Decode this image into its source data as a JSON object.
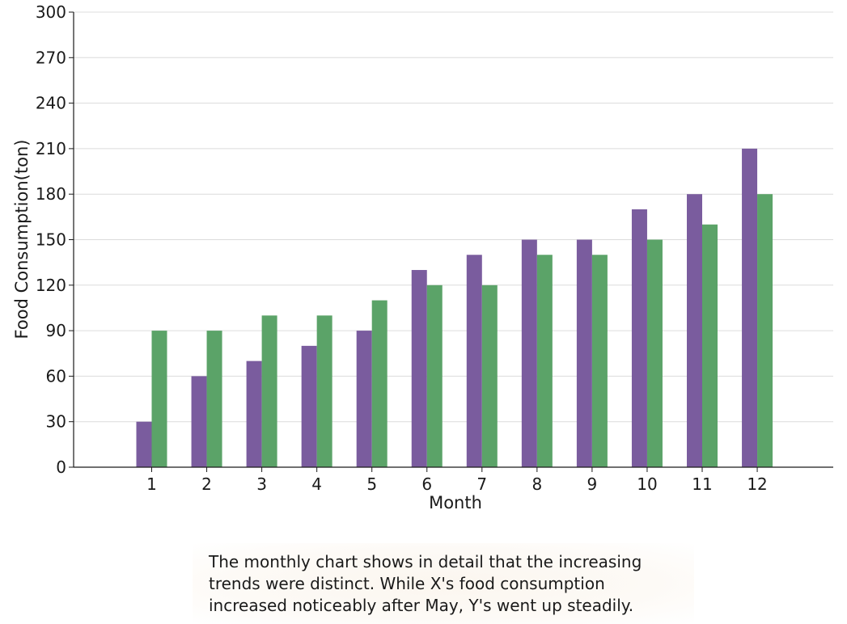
{
  "chart_data": {
    "type": "bar",
    "categories": [
      "1",
      "2",
      "3",
      "4",
      "5",
      "6",
      "7",
      "8",
      "9",
      "10",
      "11",
      "12"
    ],
    "series": [
      {
        "color": "#7a5c9e",
        "values": [
          30,
          60,
          70,
          80,
          90,
          130,
          140,
          150,
          150,
          170,
          180,
          210
        ]
      },
      {
        "color": "#5ba368",
        "values": [
          90,
          90,
          100,
          100,
          110,
          120,
          120,
          140,
          140,
          150,
          160,
          180
        ]
      }
    ],
    "xlabel": "Month",
    "ylabel": "Food Consumption(ton)",
    "ylim": [
      0,
      300
    ],
    "yticks": [
      0,
      30,
      60,
      90,
      120,
      150,
      180,
      210,
      240,
      270,
      300
    ],
    "grid": true,
    "legend": "none"
  },
  "caption": "The monthly chart shows in detail that the increasing trends were distinct. While X's food consumption increased noticeably after May, Y's went up steadily."
}
